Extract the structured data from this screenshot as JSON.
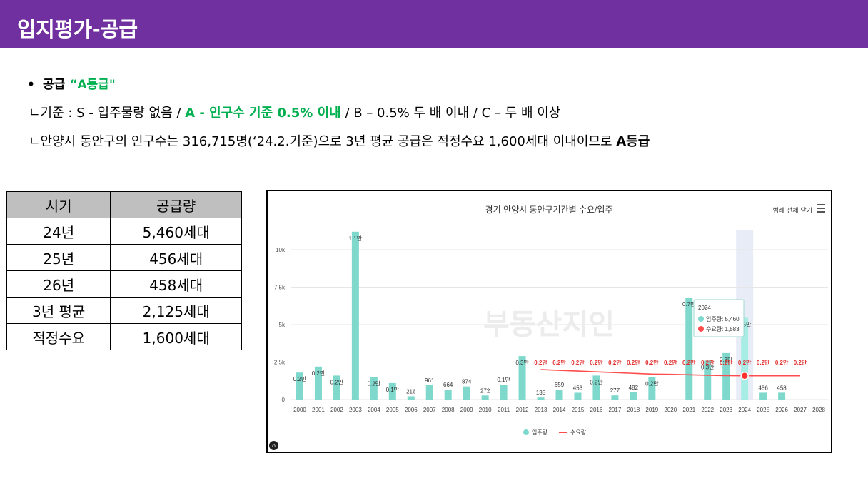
{
  "header": {
    "title": "입지평가-공급"
  },
  "bullet": {
    "label": "공급",
    "grade": "“A등급\""
  },
  "criteria": {
    "prefix": "ㄴ기준 : S - 입주물량 없음 / ",
    "highlight": "A - 인구수 기준 0.5% 이내",
    "suffix": " / B – 0.5% 두 배 이내 / C – 두 배 이상"
  },
  "summary": {
    "text": "ㄴ안양시 동안구의 인구수는 316,715명(‘24.2.기준)으로 3년 평균 공급은 적정수요 1,600세대 이내이므로 ",
    "bold": "A등급"
  },
  "table": {
    "headers": [
      "시기",
      "공급량"
    ],
    "rows": [
      [
        "24년",
        "5,460세대"
      ],
      [
        "25년",
        "456세대"
      ],
      [
        "26년",
        "458세대"
      ],
      [
        "3년 평균",
        "2,125세대"
      ],
      [
        "적정수요",
        "1,600세대"
      ]
    ]
  },
  "chart_data": {
    "type": "bar",
    "title": "경기 안양시 동안구기간별 수요/입주",
    "legend_button": "범례 전체 닫기",
    "watermark": "부동산지인",
    "categories": [
      "2000",
      "2001",
      "2002",
      "2003",
      "2004",
      "2005",
      "2006",
      "2007",
      "2008",
      "2009",
      "2010",
      "2011",
      "2012",
      "2013",
      "2014",
      "2015",
      "2016",
      "2017",
      "2018",
      "2019",
      "2020",
      "2021",
      "2022",
      "2023",
      "2024",
      "2025",
      "2026",
      "2027",
      "2028"
    ],
    "y_ticks": [
      "0",
      "2.5k",
      "5k",
      "7.5k",
      "10k"
    ],
    "ylim": [
      0,
      12000
    ],
    "series": [
      {
        "name": "입주량",
        "color": "#7fd8cc",
        "type": "bar",
        "values": [
          1800,
          2200,
          1600,
          11200,
          1500,
          1100,
          216,
          961,
          664,
          874,
          272,
          1000,
          2900,
          135,
          659,
          453,
          1600,
          277,
          482,
          1500,
          0,
          6800,
          2600,
          3100,
          5460,
          456,
          458,
          0,
          0
        ],
        "labels": [
          "0.2만",
          "0.2만",
          "0.2만",
          "1.1만",
          "0.2만",
          "0.1만",
          "216",
          "961",
          "664",
          "874",
          "272",
          "0.1만",
          "0.3만",
          "135",
          "659",
          "453",
          "0.2만",
          "277",
          "482",
          "0.2만",
          "",
          "0.7만",
          "0.3만",
          "0.3만",
          "0.5만",
          "456",
          "458",
          "",
          ""
        ]
      },
      {
        "name": "수요량",
        "color": "#ff4d4d",
        "type": "line",
        "values": [
          null,
          null,
          null,
          null,
          null,
          null,
          null,
          null,
          null,
          null,
          null,
          null,
          null,
          2000,
          1950,
          1900,
          1850,
          1800,
          1750,
          1700,
          1680,
          1650,
          1620,
          1600,
          1583,
          1583,
          1583,
          1583,
          null
        ],
        "labels": [
          "",
          "",
          "",
          "",
          "",
          "",
          "",
          "",
          "",
          "",
          "",
          "",
          "",
          "0.2만",
          "0.2만",
          "0.2만",
          "0.2만",
          "0.2만",
          "0.2만",
          "0.2만",
          "0.2만",
          "0.2만",
          "0.2만",
          "0.2만",
          "0.2만",
          "0.2만",
          "0.2만",
          "0.2만",
          ""
        ]
      }
    ],
    "tooltip": {
      "year": "2024",
      "supply": "입주량: 5,460",
      "demand": "수요량: 1,583"
    },
    "legend": [
      "입주량",
      "수요량"
    ]
  }
}
